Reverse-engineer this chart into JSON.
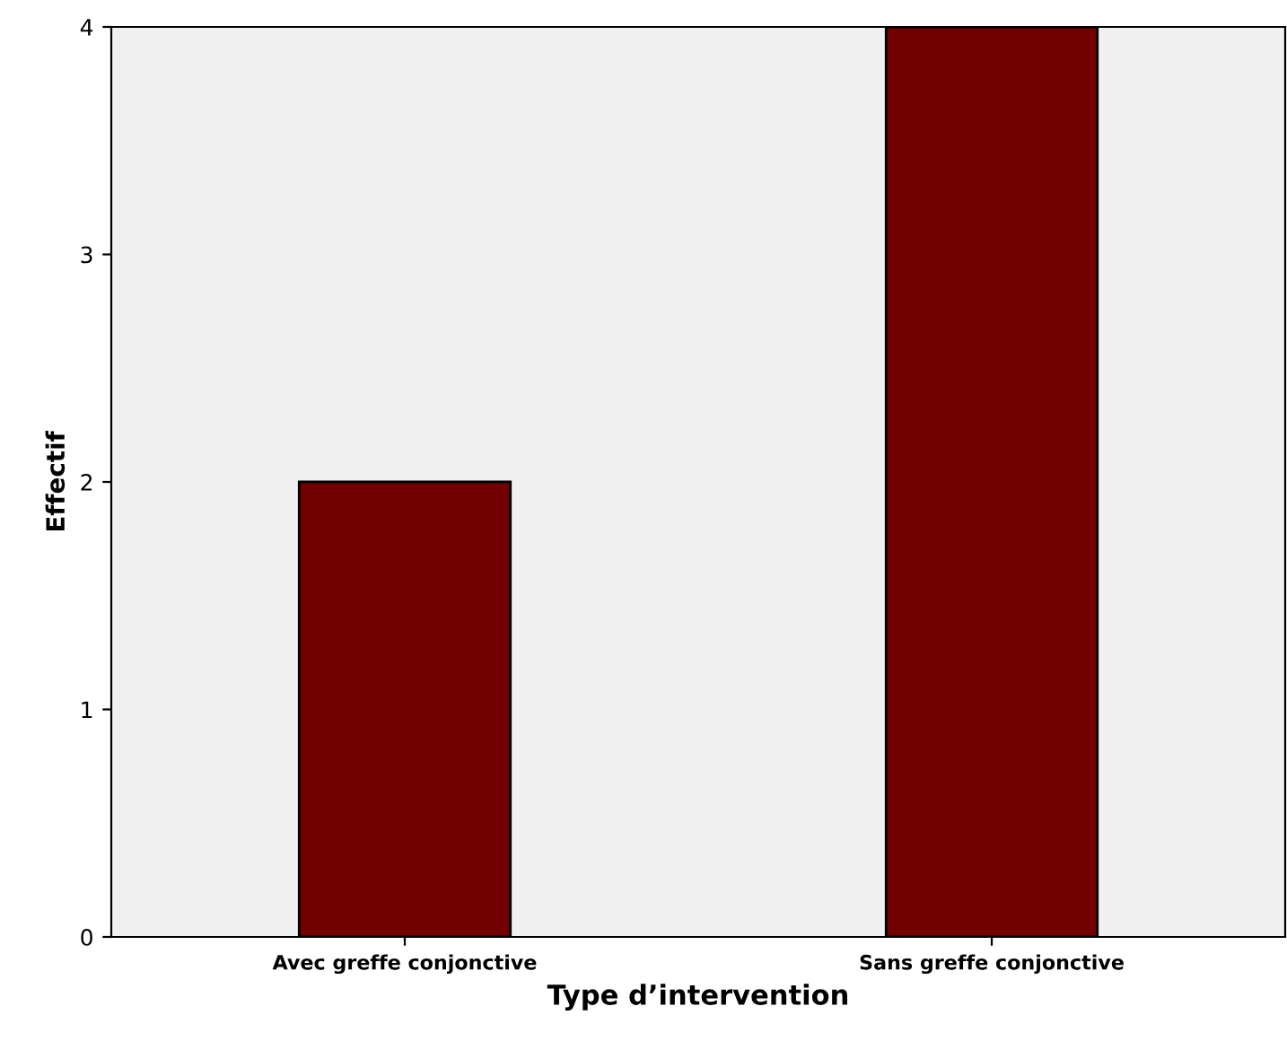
{
  "chart_data": {
    "type": "bar",
    "xlabel": "Type d’intervention",
    "ylabel": "Effectif",
    "categories": [
      "Avec greffe conjonctive",
      "Sans greffe conjonctive"
    ],
    "values": [
      2,
      4
    ],
    "color": "#720000",
    "ylim": [
      0,
      4
    ],
    "yticks": [
      0,
      1,
      2,
      3,
      4
    ],
    "grid": false
  }
}
